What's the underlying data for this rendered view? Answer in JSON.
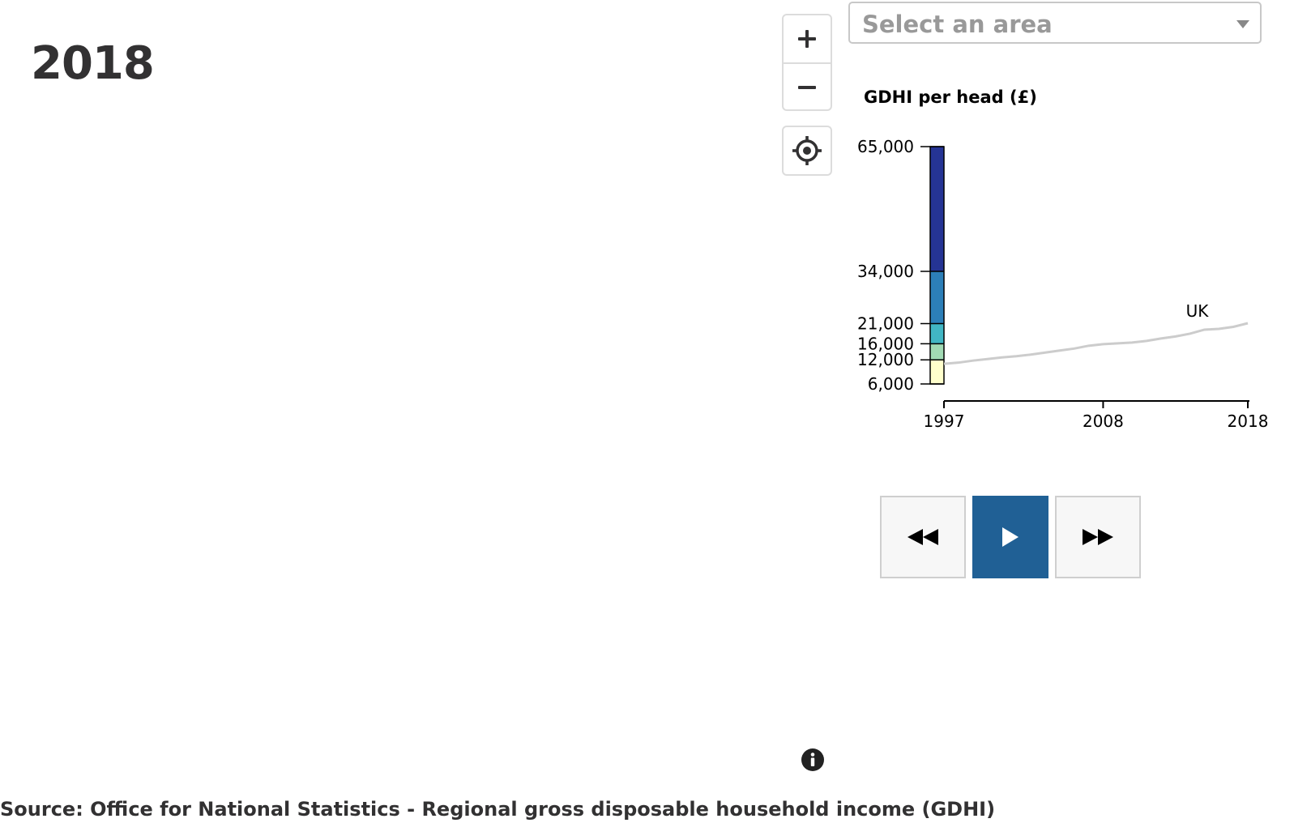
{
  "map": {
    "year": "2018"
  },
  "controls": {
    "zoom_in_icon": "plus-icon",
    "zoom_out_icon": "minus-icon",
    "locate_icon": "crosshair-icon"
  },
  "area_select": {
    "placeholder": "Select an area",
    "icon": "caret-down-icon"
  },
  "legend": {
    "title": "GDHI per head (£)"
  },
  "chart_data": {
    "type": "line",
    "ylabel": "GDHI per head (£)",
    "y_breaks": [
      6000,
      12000,
      16000,
      21000,
      34000,
      65000
    ],
    "y_tick_labels": [
      "6,000",
      "12,000",
      "16,000",
      "21,000",
      "34,000",
      "65,000"
    ],
    "bin_colors": [
      "#ffffcc",
      "#a1dab4",
      "#41b6c4",
      "#2c7fb8",
      "#253494"
    ],
    "x_ticks": [
      1997,
      2008,
      2018
    ],
    "x_tick_labels": [
      "1997",
      "2008",
      "2018"
    ],
    "xlim": [
      1997,
      2018
    ],
    "series": [
      {
        "name": "UK",
        "color": "#cccccc",
        "x": [
          1997,
          1998,
          1999,
          2000,
          2001,
          2002,
          2003,
          2004,
          2005,
          2006,
          2007,
          2008,
          2009,
          2010,
          2011,
          2012,
          2013,
          2014,
          2015,
          2016,
          2017,
          2018
        ],
        "values": [
          11000,
          11300,
          11800,
          12200,
          12600,
          12900,
          13300,
          13800,
          14300,
          14800,
          15500,
          15900,
          16100,
          16300,
          16700,
          17300,
          17800,
          18500,
          19500,
          19700,
          20200,
          21100
        ]
      }
    ]
  },
  "playback": {
    "back_icon": "rewind-icon",
    "play_icon": "play-icon",
    "forward_icon": "fast-forward-icon"
  },
  "footer": {
    "info_icon": "info-icon",
    "source": "Source: Office for National Statistics - Regional gross disposable household income (GDHI)"
  }
}
